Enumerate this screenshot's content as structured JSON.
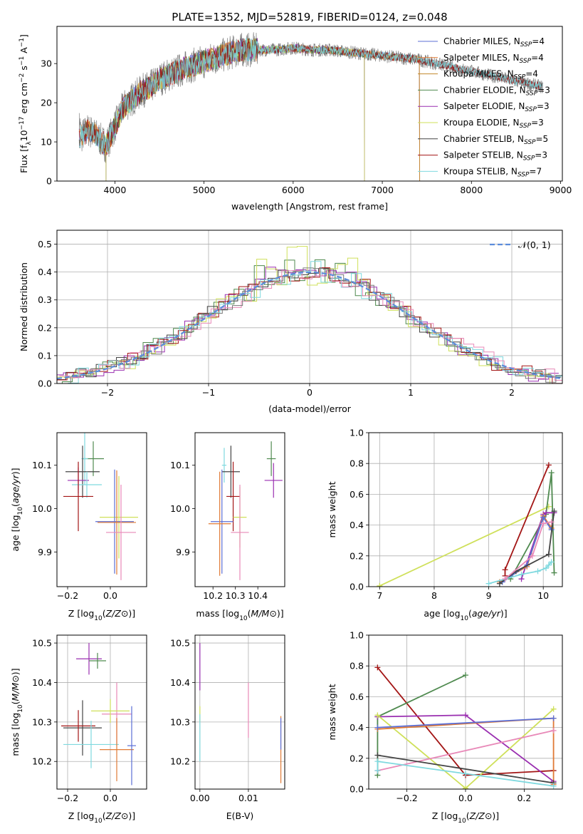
{
  "figure_title": "PLATE=1352, MJD=52819, FIBERID=0124, z=0.048",
  "colors": {
    "Chabrier MILES": "#5b6fd6",
    "Salpeter MILES": "#e07a35",
    "Kroupa MILES": "#c28a2b",
    "Chabrier ELODIE": "#4f8a4f",
    "Salpeter ELODIE": "#9a2fb0",
    "Kroupa ELODIE": "#cfe05a",
    "Chabrier STELIB": "#444444",
    "Salpeter STELIB": "#a31515",
    "Kroupa STELIB": "#7fd9df",
    "normal": "#5b8cdb",
    "pink": "#e889b8",
    "grey": "#777777"
  },
  "chart_data": [
    {
      "id": "spectrum",
      "type": "line",
      "title": "PLATE=1352, MJD=52819, FIBERID=0124, z=0.048",
      "xlabel": "wavelength [Angstrom, rest frame]",
      "ylabel": "Flux [f_λ10^-17 erg cm^-2 s^-1 A^-1]",
      "xlim": [
        3350,
        9020
      ],
      "ylim": [
        0,
        39.5
      ],
      "xticks": [
        4000,
        5000,
        6000,
        7000,
        8000,
        9000
      ],
      "yticks": [
        0,
        10,
        20,
        30
      ],
      "grid": false,
      "legend_position": "top-right",
      "continuum": {
        "wavelength": [
          3600,
          3700,
          3800,
          3900,
          4000,
          4100,
          4200,
          4300,
          4400,
          4500,
          4600,
          4800,
          5000,
          5200,
          5400,
          5600,
          5800,
          6000,
          6200,
          6400,
          6600,
          6800,
          7000,
          7200,
          7400,
          7600,
          7800,
          8000,
          8200,
          8400,
          8600,
          8800
        ],
        "flux": [
          11,
          13,
          11.5,
          9,
          14,
          19,
          21,
          23,
          24,
          26,
          27,
          29,
          30.5,
          32,
          33.5,
          33.5,
          33.5,
          34,
          33.5,
          33.5,
          33,
          32.5,
          32,
          31.5,
          31,
          30,
          29,
          28,
          27,
          26,
          25,
          24
        ]
      },
      "series": [
        {
          "name": "Chabrier MILES, N_SSP=4",
          "label_main": "Chabrier MILES, N",
          "label_sub": "SSP",
          "label_tail": "=4",
          "wave_range": [
            3600,
            7420
          ]
        },
        {
          "name": "Salpeter MILES, N_SSP=4",
          "label_main": "Salpeter MILES, N",
          "label_sub": "SSP",
          "label_tail": "=4",
          "wave_range": [
            3600,
            7420
          ]
        },
        {
          "name": "Kroupa MILES, N_SSP=4",
          "label_main": "Kroupa MILES, N",
          "label_sub": "SSP",
          "label_tail": "=4",
          "wave_range": [
            3600,
            7420
          ]
        },
        {
          "name": "Chabrier ELODIE, N_SSP=3",
          "label_main": "Chabrier ELODIE, N",
          "label_sub": "SSP",
          "label_tail": "=3",
          "wave_range": [
            3900,
            6800
          ]
        },
        {
          "name": "Salpeter ELODIE, N_SSP=3",
          "label_main": "Salpeter ELODIE, N",
          "label_sub": "SSP",
          "label_tail": "=3",
          "wave_range": [
            3900,
            6800
          ]
        },
        {
          "name": "Kroupa ELODIE, N_SSP=3",
          "label_main": "Kroupa ELODIE, N",
          "label_sub": "SSP",
          "label_tail": "=3",
          "wave_range": [
            3900,
            6800
          ]
        },
        {
          "name": "Chabrier STELIB, N_SSP=5",
          "label_main": "Chabrier STELIB, N",
          "label_sub": "SSP",
          "label_tail": "=5",
          "wave_range": [
            3600,
            8800
          ]
        },
        {
          "name": "Salpeter STELIB, N_SSP=3",
          "label_main": "Salpeter STELIB, N",
          "label_sub": "SSP",
          "label_tail": "=3",
          "wave_range": [
            3600,
            8800
          ]
        },
        {
          "name": "Kroupa STELIB, N_SSP=7",
          "label_main": "Kroupa STELIB, N",
          "label_sub": "SSP",
          "label_tail": "=7",
          "wave_range": [
            3600,
            8800
          ]
        }
      ]
    },
    {
      "id": "residuals",
      "type": "line",
      "xlabel": "(data-model)/error",
      "ylabel": "Normed distribution",
      "xlim": [
        -2.5,
        2.5
      ],
      "ylim": [
        0,
        0.55
      ],
      "xticks": [
        -2,
        -1,
        0,
        1,
        2
      ],
      "yticks": [
        0.0,
        0.1,
        0.2,
        0.3,
        0.4,
        0.5
      ],
      "grid": true,
      "legend_position": "top-right",
      "legend": "N(0,1)",
      "bin_width": 0.1,
      "histograms": [
        {
          "name": "Chabrier ELODIE",
          "peak": 0.49,
          "spread": 1.02
        },
        {
          "name": "Salpeter ELODIE",
          "peak": 0.45,
          "spread": 0.98
        },
        {
          "name": "Kroupa ELODIE",
          "peak": 0.52,
          "spread": 0.95
        },
        {
          "name": "Chabrier STELIB",
          "peak": 0.43,
          "spread": 1.0
        },
        {
          "name": "Salpeter STELIB",
          "peak": 0.45,
          "spread": 1.0
        },
        {
          "name": "Kroupa STELIB",
          "peak": 0.47,
          "spread": 1.0
        },
        {
          "name": "pink",
          "peak": 0.44,
          "spread": 1.03
        },
        {
          "name": "grey",
          "peak": 0.42,
          "spread": 1.0
        }
      ]
    },
    {
      "id": "age_vs_Z",
      "type": "scatter",
      "xlabel": "Z [log10(Z/Z⊙)]",
      "ylabel": "age [log10(age/yr)]",
      "xlim": [
        -0.25,
        0.17
      ],
      "ylim": [
        9.82,
        10.175
      ],
      "xticks": [
        -0.2,
        0.0
      ],
      "yticks": [
        9.9,
        10.0,
        10.1
      ],
      "grid": false,
      "points": [
        {
          "name": "Chabrier ELODIE",
          "x": -0.08,
          "y": 10.115,
          "xerr": 0.05,
          "yerr": 0.04
        },
        {
          "name": "Kroupa STELIB",
          "x": -0.12,
          "y": 10.115,
          "xerr": 0.015,
          "yerr": 0.06
        },
        {
          "name": "Chabrier STELIB",
          "x": -0.13,
          "y": 10.085,
          "xerr": 0.08,
          "yerr": 0.06
        },
        {
          "name": "Salpeter ELODIE",
          "x": -0.15,
          "y": 10.065,
          "xerr": 0.05,
          "yerr": 0.03
        },
        {
          "name": "Kroupa STELIB",
          "x": -0.11,
          "y": 10.055,
          "xerr": 0.07,
          "yerr": 0.03
        },
        {
          "name": "Salpeter STELIB",
          "x": -0.15,
          "y": 10.028,
          "xerr": 0.07,
          "yerr": 0.08
        },
        {
          "name": "Kroupa ELODIE",
          "x": 0.04,
          "y": 9.98,
          "xerr": 0.09,
          "yerr": 0.095
        },
        {
          "name": "Chabrier MILES",
          "x": 0.02,
          "y": 9.97,
          "xerr": 0.09,
          "yerr": 0.12
        },
        {
          "name": "Salpeter MILES",
          "x": 0.03,
          "y": 9.968,
          "xerr": 0.09,
          "yerr": 0.12
        },
        {
          "name": "pink",
          "x": 0.05,
          "y": 9.945,
          "xerr": 0.07,
          "yerr": 0.11
        }
      ]
    },
    {
      "id": "age_vs_mass",
      "type": "scatter",
      "xlabel": "mass [log10(M/M⊙)]",
      "ylabel": "",
      "xlim": [
        10.12,
        10.52
      ],
      "ylim": [
        9.82,
        10.175
      ],
      "xticks": [
        10.2,
        10.3,
        10.4
      ],
      "yticks": [
        9.9,
        10.0,
        10.1
      ],
      "grid": false,
      "points": [
        {
          "name": "Chabrier ELODIE",
          "x": 10.46,
          "y": 10.115,
          "xerr": 0.02,
          "yerr": 0.04
        },
        {
          "name": "Kroupa STELIB",
          "x": 10.25,
          "y": 10.1,
          "xerr": 0.01,
          "yerr": 0.04
        },
        {
          "name": "Chabrier STELIB",
          "x": 10.28,
          "y": 10.085,
          "xerr": 0.04,
          "yerr": 0.06
        },
        {
          "name": "Salpeter ELODIE",
          "x": 10.47,
          "y": 10.065,
          "xerr": 0.04,
          "yerr": 0.04
        },
        {
          "name": "Salpeter STELIB",
          "x": 10.29,
          "y": 10.028,
          "xerr": 0.03,
          "yerr": 0.08
        },
        {
          "name": "Kroupa ELODIE",
          "x": 10.32,
          "y": 9.98,
          "xerr": 0.03,
          "yerr": 0.07
        },
        {
          "name": "Chabrier MILES",
          "x": 10.24,
          "y": 9.97,
          "xerr": 0.05,
          "yerr": 0.12
        },
        {
          "name": "Salpeter MILES",
          "x": 10.23,
          "y": 9.965,
          "xerr": 0.05,
          "yerr": 0.12
        },
        {
          "name": "pink",
          "x": 10.32,
          "y": 9.945,
          "xerr": 0.04,
          "yerr": 0.11
        }
      ]
    },
    {
      "id": "weight_vs_age",
      "type": "line",
      "xlabel": "age [log10(age/yr)]",
      "ylabel": "mass weight",
      "xlim": [
        6.8,
        10.35
      ],
      "ylim": [
        0,
        1.0
      ],
      "xticks": [
        7,
        8,
        9,
        10
      ],
      "yticks": [
        0.0,
        0.2,
        0.4,
        0.6,
        0.8,
        1.0
      ],
      "grid": true,
      "series": [
        {
          "name": "Kroupa ELODIE",
          "x": [
            7.0,
            10.1
          ],
          "y": [
            0.005,
            0.52
          ]
        },
        {
          "name": "Salpeter STELIB",
          "x": [
            9.3,
            9.3,
            10.1
          ],
          "y": [
            0.07,
            0.11,
            0.79
          ]
        },
        {
          "name": "Chabrier ELODIE",
          "x": [
            9.4,
            10.05,
            10.15,
            10.2
          ],
          "y": [
            0.05,
            0.47,
            0.74,
            0.09
          ]
        },
        {
          "name": "Salpeter ELODIE",
          "x": [
            9.6,
            10.0,
            10.05,
            10.2
          ],
          "y": [
            0.05,
            0.47,
            0.48,
            0.48
          ]
        },
        {
          "name": "Salpeter MILES",
          "x": [
            9.2,
            9.7,
            10.0,
            10.15
          ],
          "y": [
            0.03,
            0.13,
            0.46,
            0.38
          ]
        },
        {
          "name": "Chabrier MILES",
          "x": [
            9.25,
            9.7,
            10.0,
            10.15
          ],
          "y": [
            0.03,
            0.14,
            0.45,
            0.37
          ]
        },
        {
          "name": "Chabrier STELIB",
          "x": [
            9.2,
            9.5,
            10.1,
            10.2
          ],
          "y": [
            0.02,
            0.1,
            0.21,
            0.49
          ]
        },
        {
          "name": "Kroupa STELIB",
          "x": [
            9.0,
            9.3,
            9.6,
            9.9,
            10.05,
            10.1,
            10.15
          ],
          "y": [
            0.02,
            0.05,
            0.08,
            0.1,
            0.12,
            0.14,
            0.16
          ]
        },
        {
          "name": "pink",
          "x": [
            9.3,
            9.8,
            10.0,
            10.15
          ],
          "y": [
            0.05,
            0.2,
            0.41,
            0.42
          ]
        }
      ]
    },
    {
      "id": "mass_vs_Z",
      "type": "scatter",
      "xlabel": "Z [log10(Z/Z⊙)]",
      "ylabel": "mass [log10(M/M⊙)]",
      "xlim": [
        -0.25,
        0.17
      ],
      "ylim": [
        10.13,
        10.52
      ],
      "xticks": [
        -0.2,
        0.0
      ],
      "yticks": [
        10.2,
        10.3,
        10.4,
        10.5
      ],
      "grid": true,
      "points": [
        {
          "name": "Salpeter ELODIE",
          "x": -0.1,
          "y": 10.46,
          "xerr": 0.06,
          "yerr": 0.04
        },
        {
          "name": "Chabrier ELODIE",
          "x": -0.06,
          "y": 10.455,
          "xerr": 0.04,
          "yerr": 0.02
        },
        {
          "name": "pink",
          "x": 0.03,
          "y": 10.32,
          "xerr": 0.07,
          "yerr": 0.08
        },
        {
          "name": "Kroupa ELODIE",
          "x": 0.0,
          "y": 10.328,
          "xerr": 0.09,
          "yerr": 0.03
        },
        {
          "name": "Chabrier STELIB",
          "x": -0.13,
          "y": 10.285,
          "xerr": 0.09,
          "yerr": 0.07
        },
        {
          "name": "Salpeter STELIB",
          "x": -0.15,
          "y": 10.29,
          "xerr": 0.08,
          "yerr": 0.04
        },
        {
          "name": "Kroupa STELIB",
          "x": -0.09,
          "y": 10.243,
          "xerr": 0.13,
          "yerr": 0.06
        },
        {
          "name": "Salpeter MILES",
          "x": 0.03,
          "y": 10.23,
          "xerr": 0.08,
          "yerr": 0.08
        },
        {
          "name": "Chabrier MILES",
          "x": 0.1,
          "y": 10.24,
          "xerr": 0.02,
          "yerr": 0.1
        }
      ]
    },
    {
      "id": "mass_vs_ebv",
      "type": "scatter",
      "xlabel": "E(B-V)",
      "ylabel": "",
      "xlim": [
        -0.001,
        0.0175
      ],
      "ylim": [
        10.13,
        10.52
      ],
      "xticks": [
        0.0,
        0.01
      ],
      "yticks": [
        10.2,
        10.3,
        10.4,
        10.5
      ],
      "grid": true,
      "points": [
        {
          "name": "Salpeter ELODIE",
          "x": 0.0,
          "y": 10.44,
          "xerr": 0.0,
          "yerr": 0.06
        },
        {
          "name": "Kroupa ELODIE",
          "x": 0.0,
          "y": 10.32,
          "xerr": 0.0,
          "yerr": 0.02
        },
        {
          "name": "Kroupa STELIB",
          "x": 0.0,
          "y": 10.26,
          "xerr": 0.0,
          "yerr": 0.06
        },
        {
          "name": "pink",
          "x": 0.01,
          "y": 10.33,
          "xerr": 0.0,
          "yerr": 0.07
        },
        {
          "name": "Salpeter MILES",
          "x": 0.0167,
          "y": 10.23,
          "xerr": 0.0,
          "yerr": 0.085
        },
        {
          "name": "Chabrier MILES",
          "x": 0.0167,
          "y": 10.27,
          "xerr": 0.0,
          "yerr": 0.04
        }
      ]
    },
    {
      "id": "weight_vs_Z",
      "type": "line",
      "xlabel": "Z [log10(Z/Z⊙)]",
      "ylabel": "mass weight",
      "xlim": [
        -0.33,
        0.33
      ],
      "ylim": [
        0,
        1.0
      ],
      "xticks": [
        -0.2,
        0.0,
        0.2
      ],
      "yticks": [
        0.0,
        0.2,
        0.4,
        0.6,
        0.8,
        1.0
      ],
      "grid": true,
      "series": [
        {
          "name": "Salpeter STELIB",
          "x": [
            -0.3,
            0.0,
            0.3
          ],
          "y": [
            0.79,
            0.09,
            0.12
          ]
        },
        {
          "name": "Chabrier ELODIE",
          "x": [
            -0.3,
            -0.3,
            0.0
          ],
          "y": [
            0.09,
            0.47,
            0.74
          ]
        },
        {
          "name": "Salpeter ELODIE",
          "x": [
            -0.3,
            0.0,
            0.3
          ],
          "y": [
            0.47,
            0.48,
            0.05
          ]
        },
        {
          "name": "Kroupa ELODIE",
          "x": [
            -0.3,
            0.0,
            0.3
          ],
          "y": [
            0.48,
            0.005,
            0.52
          ]
        },
        {
          "name": "Salpeter MILES",
          "x": [
            -0.3,
            0.3,
            0.3
          ],
          "y": [
            0.39,
            0.46,
            0.03
          ]
        },
        {
          "name": "Chabrier MILES",
          "x": [
            -0.3,
            0.3
          ],
          "y": [
            0.4,
            0.46
          ]
        },
        {
          "name": "pink",
          "x": [
            -0.3,
            0.3
          ],
          "y": [
            0.12,
            0.38
          ]
        },
        {
          "name": "Chabrier STELIB",
          "x": [
            -0.3,
            0.3
          ],
          "y": [
            0.22,
            0.04
          ]
        },
        {
          "name": "Kroupa STELIB",
          "x": [
            -0.3,
            -0.3,
            0.0,
            0.3
          ],
          "y": [
            0.12,
            0.18,
            0.1,
            0.02
          ]
        }
      ]
    }
  ]
}
